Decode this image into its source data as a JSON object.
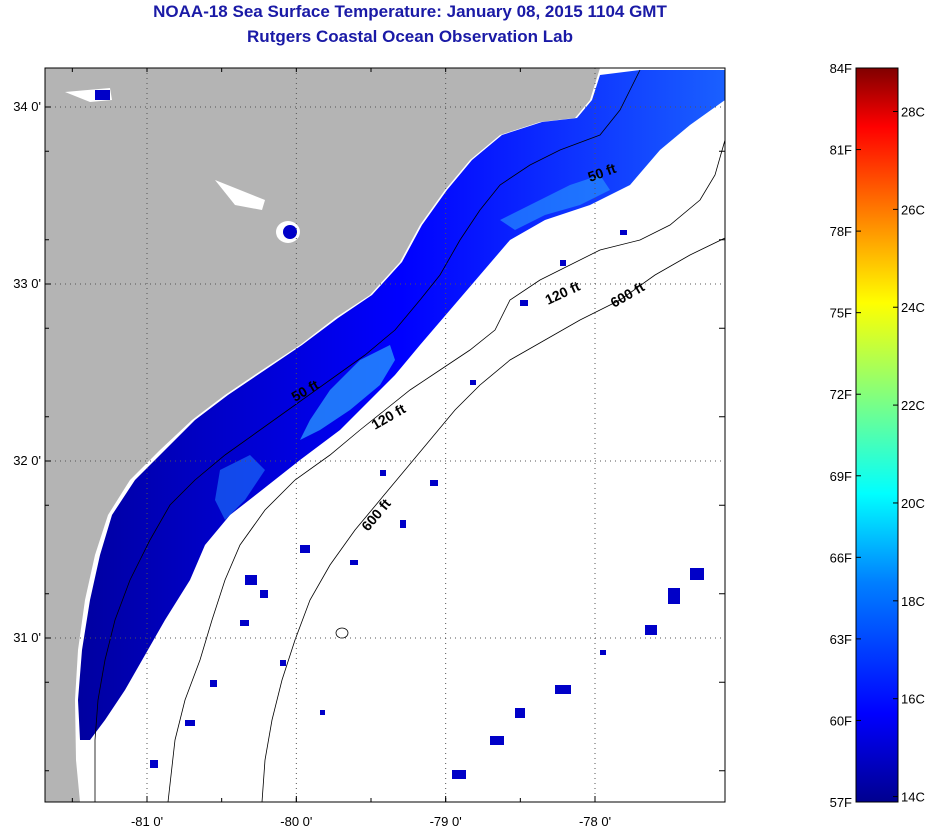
{
  "title": {
    "line1": "NOAA-18 Sea Surface Temperature:  January 08, 2015 1104 GMT",
    "line2": "Rutgers Coastal Ocean Observation Lab"
  },
  "map": {
    "lon_ticks": [
      {
        "value": -81,
        "label": "-81 0'"
      },
      {
        "value": -80,
        "label": "-80 0'"
      },
      {
        "value": -79,
        "label": "-79 0'"
      },
      {
        "value": -78,
        "label": "-78 0'"
      }
    ],
    "lat_ticks": [
      {
        "value": 34,
        "label": "34 0'"
      },
      {
        "value": 33,
        "label": "33 0'"
      },
      {
        "value": 32,
        "label": "32 0'"
      },
      {
        "value": 31,
        "label": "31 0'"
      }
    ],
    "contour_labels": [
      {
        "text": "50 ft"
      },
      {
        "text": "120 ft"
      },
      {
        "text": "600 ft"
      },
      {
        "text": "50 ft"
      },
      {
        "text": "120 ft"
      },
      {
        "text": "600 ft"
      }
    ],
    "land_color": "#b4b4b4",
    "ocean_color": "#ffffff"
  },
  "colorbar": {
    "f_labels": [
      "84F",
      "81F",
      "78F",
      "75F",
      "72F",
      "69F",
      "66F",
      "63F",
      "60F",
      "57F"
    ],
    "c_labels": [
      "28C",
      "26C",
      "24C",
      "22C",
      "20C",
      "18C",
      "16C",
      "14C"
    ],
    "colors": [
      "#00008f",
      "#0000ff",
      "#0080ff",
      "#00ffff",
      "#80ff80",
      "#ffff00",
      "#ff8000",
      "#ff0000",
      "#800000"
    ]
  }
}
